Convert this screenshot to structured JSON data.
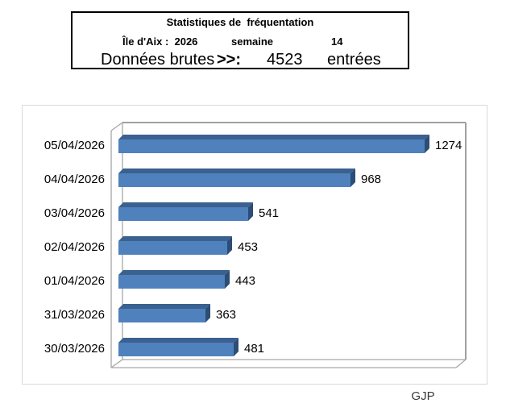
{
  "header": {
    "title": "Statistiques de  fréquentation",
    "line2": {
      "location_year": "Île d'Aix :  2026",
      "week_label": "semaine",
      "week_number": "14"
    },
    "line3": {
      "label": "Données brutes",
      "arrow": ">>:",
      "total": "4523",
      "unit": "entrées"
    }
  },
  "footer": {
    "signature": "GJP"
  },
  "chart_data": {
    "type": "bar",
    "orientation": "horizontal",
    "style": "3d",
    "title": "",
    "categories": [
      "05/04/2026",
      "04/04/2026",
      "03/04/2026",
      "02/04/2026",
      "01/04/2026",
      "31/03/2026",
      "30/03/2026"
    ],
    "values": [
      1274,
      968,
      541,
      453,
      443,
      363,
      481
    ],
    "data_labels": [
      "1274",
      "968",
      "541",
      "453",
      "443",
      "363",
      "481"
    ],
    "xlim": [
      0,
      1430
    ],
    "grid": false,
    "legend": false,
    "bar_color": "#4f81bd",
    "bar_top_color": "#3a618f",
    "bar_side_color": "#2c4d75",
    "wall_border_color": "#a6a6a6"
  }
}
